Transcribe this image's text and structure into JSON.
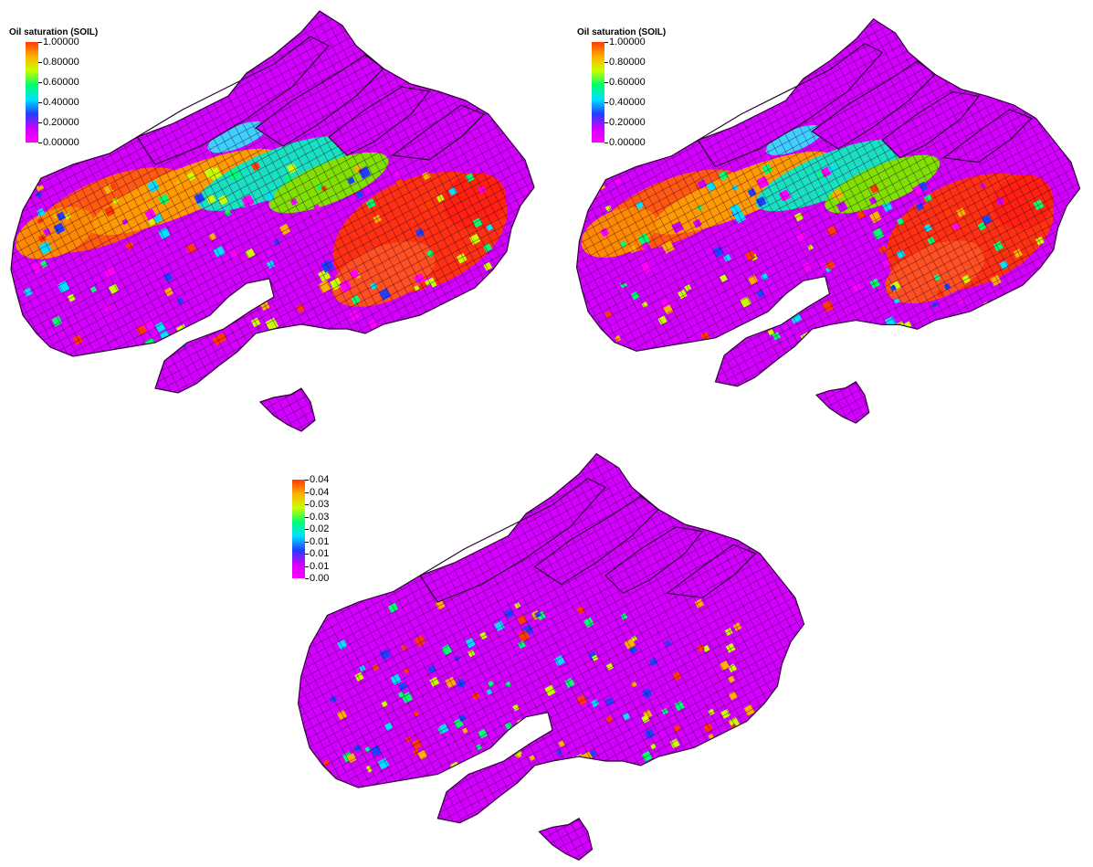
{
  "panels": [
    {
      "legend": {
        "title": "Oil saturation (SOIL)",
        "ticks": [
          "1.00000",
          "0.80000",
          "0.60000",
          "0.40000",
          "0.20000",
          "0.00000"
        ]
      }
    },
    {
      "legend": {
        "title": "Oil saturation (SOIL)",
        "ticks": [
          "1.00000",
          "0.80000",
          "0.60000",
          "0.40000",
          "0.20000",
          "0.00000"
        ]
      }
    },
    {
      "legend": {
        "title": "",
        "ticks": [
          "0.04",
          "0.04",
          "0.03",
          "0.03",
          "0.02",
          "0.01",
          "0.01",
          "0.01",
          "0.00"
        ]
      }
    }
  ],
  "colors": {
    "colormap": [
      "#ff3a00",
      "#ffb000",
      "#c8ff00",
      "#00ff70",
      "#00e0ff",
      "#2040ff",
      "#d000ff",
      "#ff00ff"
    ],
    "reservoir_base": "#d400ff",
    "grid_line": "#2a0033"
  }
}
